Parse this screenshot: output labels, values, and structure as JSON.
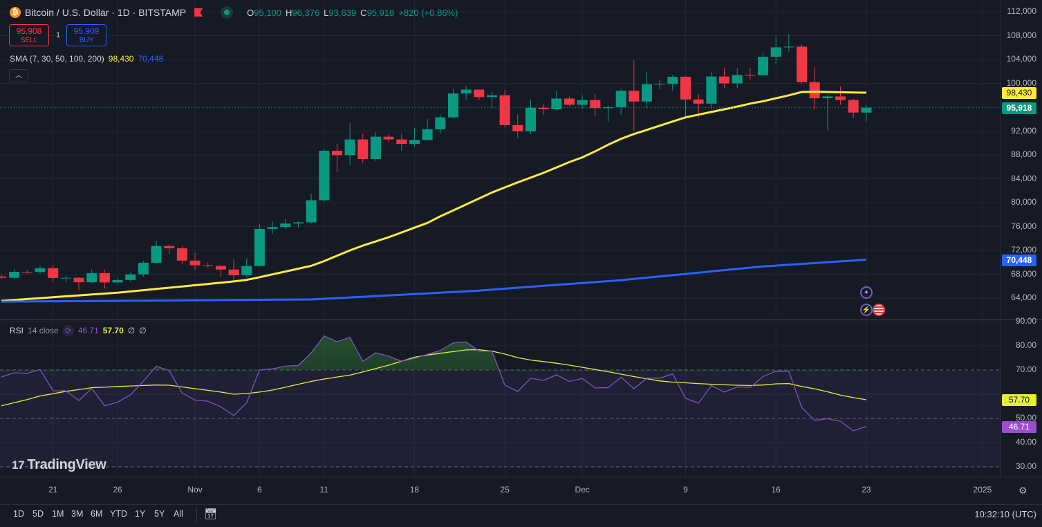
{
  "header": {
    "symbol_title": "Bitcoin / U.S. Dollar · 1D · BITSTAMP",
    "symbol_icon": "bitcoin-icon",
    "ohlc": [
      {
        "key": "O",
        "value": "95,100"
      },
      {
        "key": "H",
        "value": "96,376"
      },
      {
        "key": "L",
        "value": "93,639"
      },
      {
        "key": "C",
        "value": "95,918"
      }
    ],
    "change": "+820 (+0.86%)"
  },
  "trade": {
    "sell_price": "95,908",
    "sell_label": "SELL",
    "quantity": "1",
    "buy_price": "95,909",
    "buy_label": "BUY"
  },
  "sma_legend": {
    "label": "SMA (7, 30, 50, 100, 200)",
    "value_yellow": "98,430",
    "value_blue": "70,448"
  },
  "rsi_legend": {
    "label": "RSI",
    "params": "14 close",
    "rsi_value": "46.71",
    "ma_value": "57.70",
    "na1": "∅",
    "na2": "∅"
  },
  "logo": {
    "mark": "17",
    "text": "TradingView"
  },
  "price_axis": {
    "ticks": [
      "112,000",
      "108,000",
      "104,000",
      "100,000",
      "92,000",
      "88,000",
      "84,000",
      "80,000",
      "76,000",
      "72,000",
      "68,000",
      "64,000"
    ],
    "tick_values": [
      112000,
      108000,
      104000,
      100000,
      92000,
      88000,
      84000,
      80000,
      76000,
      72000,
      68000,
      64000
    ],
    "last_price_label": "95,918",
    "sma_yellow_label": "98,430",
    "sma_blue_label": "70,448"
  },
  "rsi_axis": {
    "ticks": [
      "90.00",
      "80.00",
      "70.00",
      "50.00",
      "40.00",
      "30.00"
    ],
    "tick_values": [
      90,
      80,
      70,
      50,
      40,
      30
    ],
    "rsi_label": "46.71",
    "ma_label": "57.70"
  },
  "time_axis": {
    "labels": [
      "21",
      "26",
      "Nov",
      "6",
      "11",
      "18",
      "25",
      "Dec",
      "9",
      "16",
      "23",
      "2025"
    ],
    "label_dates": [
      "2024-10-21",
      "2024-10-26",
      "2024-11-01",
      "2024-11-06",
      "2024-11-11",
      "2024-11-18",
      "2024-11-25",
      "2024-12-01",
      "2024-12-09",
      "2024-12-16",
      "2024-12-23",
      "2025-01-01"
    ]
  },
  "bottom_bar": {
    "ranges": [
      "1D",
      "5D",
      "1M",
      "3M",
      "6M",
      "YTD",
      "1Y",
      "5Y",
      "All"
    ],
    "time": "10:32:10 (UTC)"
  },
  "colors": {
    "background": "#161a25",
    "up": "#089981",
    "down": "#f23645",
    "sma_yellow": "#ffeb3b",
    "sma_blue": "#2962ff",
    "rsi": "#7e57c2",
    "rsi_ma": "#e4ee3a",
    "rsi_label": "#9c4dcc"
  },
  "chart_data": [
    {
      "type": "candlestick",
      "title": "Bitcoin / U.S. Dollar · 1D · BITSTAMP",
      "ylim": [
        62000,
        112500
      ],
      "grid": true,
      "start_date": "2024-10-17",
      "ohlc": [
        [
          67620,
          67900,
          67200,
          67400
        ],
        [
          67400,
          68900,
          67200,
          68400
        ],
        [
          68400,
          68700,
          68100,
          68360
        ],
        [
          68360,
          69400,
          68100,
          69000
        ],
        [
          69000,
          69500,
          66800,
          67370
        ],
        [
          67370,
          67800,
          66600,
          67400
        ],
        [
          67400,
          67500,
          65300,
          66650
        ],
        [
          66650,
          68800,
          66500,
          68180
        ],
        [
          68180,
          68800,
          65600,
          66620
        ],
        [
          66620,
          67400,
          66500,
          67030
        ],
        [
          67030,
          68300,
          66800,
          67970
        ],
        [
          67970,
          70200,
          67600,
          69920
        ],
        [
          69920,
          73600,
          69700,
          72730
        ],
        [
          72730,
          72950,
          71450,
          72340
        ],
        [
          72340,
          72700,
          69700,
          70280
        ],
        [
          70280,
          71600,
          68800,
          69500
        ],
        [
          69500,
          69950,
          69100,
          69380
        ],
        [
          69380,
          69500,
          67500,
          68790
        ],
        [
          68790,
          70500,
          66800,
          67830
        ],
        [
          67830,
          70600,
          67500,
          69380
        ],
        [
          69380,
          76400,
          69300,
          75600
        ],
        [
          75600,
          76900,
          74800,
          75900
        ],
        [
          75900,
          77300,
          75600,
          76500
        ],
        [
          76500,
          76900,
          75800,
          76700
        ],
        [
          76700,
          81500,
          76500,
          80400
        ],
        [
          80400,
          89000,
          80200,
          88700
        ],
        [
          88700,
          89900,
          85100,
          87950
        ],
        [
          87950,
          93300,
          86300,
          90600
        ],
        [
          90600,
          91600,
          86600,
          87300
        ],
        [
          87300,
          91800,
          87000,
          91050
        ],
        [
          91050,
          91500,
          90100,
          90600
        ],
        [
          90600,
          91500,
          88700,
          89850
        ],
        [
          89850,
          92500,
          89400,
          90500
        ],
        [
          90500,
          94000,
          90400,
          92300
        ],
        [
          92300,
          94800,
          91500,
          94300
        ],
        [
          94300,
          99000,
          94100,
          98300
        ],
        [
          98300,
          99600,
          97200,
          98950
        ],
        [
          98950,
          98950,
          97200,
          97700
        ],
        [
          97700,
          98600,
          95800,
          98000
        ],
        [
          98000,
          98900,
          92600,
          93000
        ],
        [
          93000,
          94800,
          90800,
          91950
        ],
        [
          91950,
          97300,
          91500,
          95900
        ],
        [
          95900,
          96600,
          94700,
          95650
        ],
        [
          95650,
          98700,
          95400,
          97450
        ],
        [
          97450,
          97800,
          96200,
          96400
        ],
        [
          96400,
          98000,
          95800,
          97200
        ],
        [
          97200,
          98200,
          94500,
          95850
        ],
        [
          95850,
          96300,
          93600,
          96000
        ],
        [
          96000,
          99100,
          94700,
          98750
        ],
        [
          98750,
          103900,
          92000,
          96950
        ],
        [
          96950,
          101900,
          95900,
          99850
        ],
        [
          99850,
          100500,
          99000,
          99900
        ],
        [
          99900,
          101400,
          98700,
          101100
        ],
        [
          101100,
          101200,
          94200,
          97300
        ],
        [
          97300,
          98200,
          94300,
          96600
        ],
        [
          96600,
          101900,
          95700,
          101150
        ],
        [
          101150,
          102500,
          99300,
          100000
        ],
        [
          100000,
          102500,
          99200,
          101400
        ],
        [
          101400,
          102600,
          100600,
          101350
        ],
        [
          101350,
          105200,
          101200,
          104450
        ],
        [
          104450,
          107800,
          103300,
          106050
        ],
        [
          106050,
          108300,
          105300,
          106150
        ],
        [
          106150,
          106500,
          100000,
          100200
        ],
        [
          100200,
          102700,
          95600,
          97500
        ],
        [
          97500,
          98000,
          92200,
          97800
        ],
        [
          97800,
          99500,
          96400,
          97200
        ],
        [
          97200,
          97400,
          94200,
          95100
        ],
        [
          95100,
          96376,
          93639,
          95918
        ]
      ],
      "overlays": [
        {
          "name": "SMA",
          "color": "#ffeb3b",
          "values": [
            63540,
            63690,
            63840,
            63990,
            64140,
            64300,
            64450,
            64600,
            64750,
            64900,
            65110,
            65320,
            65530,
            65740,
            65950,
            66160,
            66370,
            66580,
            66800,
            67050,
            67500,
            67980,
            68450,
            68930,
            69400,
            70200,
            71100,
            72000,
            72800,
            73500,
            74200,
            75000,
            75800,
            76600,
            77700,
            78700,
            79700,
            80700,
            81700,
            82550,
            83400,
            84200,
            85000,
            85900,
            86800,
            87600,
            88600,
            89700,
            90700,
            91500,
            92200,
            92900,
            93600,
            94300,
            94750,
            95200,
            95650,
            96100,
            96600,
            97000,
            97500,
            98000,
            98550,
            98600,
            98550,
            98500,
            98460,
            98430
          ]
        },
        {
          "name": "SMA",
          "color": "#2962ff",
          "values": [
            63400,
            63415,
            63430,
            63446,
            63462,
            63477,
            63492,
            63508,
            63523,
            63538,
            63554,
            63570,
            63585,
            63600,
            63616,
            63631,
            63646,
            63662,
            63677,
            63692,
            63708,
            63723,
            63739,
            63754,
            63770,
            63880,
            63990,
            64110,
            64220,
            64340,
            64450,
            64560,
            64680,
            64790,
            64910,
            65020,
            65140,
            65250,
            65420,
            65580,
            65740,
            65900,
            66050,
            66210,
            66370,
            66530,
            66680,
            66840,
            67000,
            67210,
            67420,
            67630,
            67840,
            68050,
            68260,
            68470,
            68680,
            68890,
            69100,
            69300,
            69440,
            69590,
            69730,
            69870,
            70020,
            70160,
            70300,
            70448
          ]
        }
      ]
    },
    {
      "type": "line",
      "title": "RSI 14 close",
      "ylim": [
        27,
        92
      ],
      "bands": {
        "upper": 70,
        "middle": 50,
        "lower": 30
      },
      "series": [
        {
          "name": "RSI",
          "values": [
            67.1,
            68.9,
            68.6,
            70.2,
            61.4,
            61.4,
            57.4,
            62.4,
            55.2,
            56.7,
            59.7,
            65.4,
            71.6,
            69.7,
            60.5,
            57.6,
            57.1,
            54.8,
            51.2,
            56.5,
            70,
            70.5,
            71.6,
            71.9,
            77.1,
            84.1,
            81.7,
            83.5,
            73.6,
            77.1,
            75.7,
            73.6,
            74.8,
            76.5,
            78.1,
            81.2,
            81.6,
            77.8,
            77.8,
            63.8,
            61.1,
            66.6,
            65.7,
            68,
            65.3,
            66.5,
            62.6,
            62.7,
            67,
            62.3,
            66.6,
            66.6,
            68.4,
            58.3,
            56.3,
            63.6,
            60.9,
            63,
            62.8,
            67.3,
            69.5,
            69.5,
            54.5,
            49.2,
            49.9,
            48.8,
            44.9,
            46.71
          ]
        },
        {
          "name": "RSI-based MA",
          "values": [
            55.2,
            56.5,
            57.8,
            59.3,
            60.2,
            61.2,
            61.9,
            62.7,
            62.9,
            63.2,
            63.4,
            63.6,
            63.8,
            63.7,
            63,
            62.3,
            61.6,
            60.9,
            60,
            60.3,
            60.9,
            61.7,
            62.9,
            64.1,
            65.3,
            66.3,
            67.1,
            67.9,
            69.2,
            70.6,
            72,
            73.6,
            75.3,
            76.2,
            76.9,
            77.6,
            78.3,
            78.4,
            77.8,
            76.6,
            75.1,
            74.1,
            73.5,
            72.8,
            72,
            71.1,
            70.2,
            69.3,
            68.3,
            67.3,
            66.4,
            65.5,
            65,
            64.7,
            64.4,
            64.1,
            63.9,
            63.7,
            63.6,
            63.8,
            64.3,
            64.4,
            63.2,
            62.2,
            61,
            59.6,
            58.6,
            57.7
          ]
        }
      ]
    }
  ]
}
